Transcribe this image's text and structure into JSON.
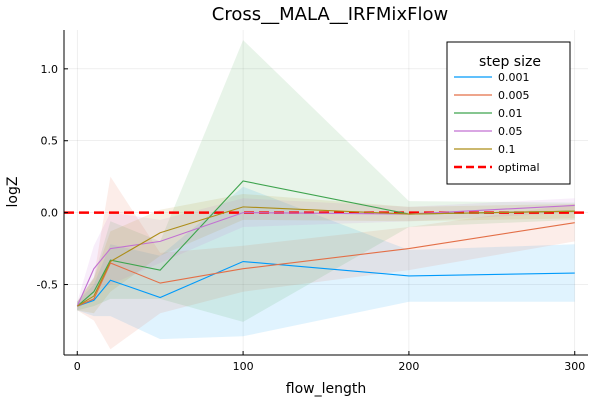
{
  "chart_data": {
    "type": "line",
    "title": "Cross__MALA__IRFMixFlow",
    "xlabel": "flow_length",
    "ylabel": "logZ",
    "xlim": [
      -8,
      308
    ],
    "ylim": [
      -0.99,
      1.27
    ],
    "xticks": [
      0,
      100,
      200,
      300
    ],
    "xtick_labels": [
      "0",
      "100",
      "200",
      "300"
    ],
    "yticks": [
      -0.5,
      0.0,
      0.5,
      1.0
    ],
    "ytick_labels": [
      "-0.5",
      "0.0",
      "0.5",
      "1.0"
    ],
    "grid": true,
    "legend": {
      "title": "step size",
      "position": "top-right"
    },
    "x": [
      0,
      10,
      20,
      50,
      100,
      200,
      300
    ],
    "series": [
      {
        "name": "0.001",
        "color": "#009AFA",
        "values": [
          -0.65,
          -0.61,
          -0.47,
          -0.59,
          -0.34,
          -0.44,
          -0.42
        ],
        "lower": [
          -0.68,
          -0.72,
          -0.72,
          -0.88,
          -0.86,
          -0.62,
          -0.62
        ],
        "upper": [
          -0.62,
          -0.5,
          -0.22,
          -0.3,
          0.18,
          -0.26,
          -0.22
        ]
      },
      {
        "name": "0.005",
        "color": "#E36F47",
        "values": [
          -0.65,
          -0.6,
          -0.35,
          -0.49,
          -0.39,
          -0.25,
          -0.07
        ],
        "lower": [
          -0.68,
          -0.75,
          -0.95,
          -0.7,
          -0.55,
          -0.4,
          -0.2
        ],
        "upper": [
          -0.62,
          -0.45,
          0.25,
          -0.28,
          -0.23,
          -0.1,
          0.06
        ]
      },
      {
        "name": "0.01",
        "color": "#3EA44E",
        "values": [
          -0.65,
          -0.55,
          -0.33,
          -0.4,
          0.22,
          -0.01,
          0.01
        ],
        "lower": [
          -0.68,
          -0.65,
          -0.6,
          -0.6,
          -0.76,
          -0.1,
          -0.05
        ],
        "upper": [
          -0.62,
          -0.45,
          -0.06,
          -0.2,
          1.2,
          0.08,
          0.07
        ]
      },
      {
        "name": "0.05",
        "color": "#C271D2",
        "values": [
          -0.65,
          -0.39,
          -0.25,
          -0.2,
          0.0,
          -0.01,
          0.05
        ],
        "lower": [
          -0.68,
          -0.55,
          -0.5,
          -0.35,
          -0.1,
          -0.06,
          0.0
        ],
        "upper": [
          -0.62,
          -0.23,
          0.0,
          -0.05,
          0.1,
          0.04,
          0.1
        ]
      },
      {
        "name": "0.1",
        "color": "#AC8D18",
        "values": [
          -0.65,
          -0.58,
          -0.34,
          -0.14,
          0.04,
          -0.01,
          0.01
        ],
        "lower": [
          -0.68,
          -0.7,
          -0.55,
          -0.3,
          -0.05,
          -0.06,
          -0.04
        ],
        "upper": [
          -0.62,
          -0.46,
          -0.13,
          0.02,
          0.13,
          0.04,
          0.06
        ]
      }
    ],
    "reference": {
      "name": "optimal",
      "y": 0.0,
      "color": "#FF0000",
      "style": "dashed"
    }
  }
}
